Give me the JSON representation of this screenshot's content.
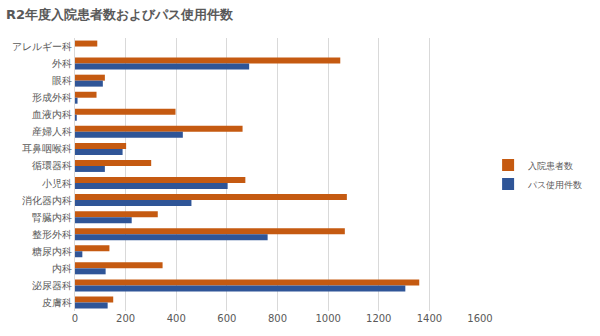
{
  "chart_data": {
    "type": "bar",
    "orientation": "horizontal",
    "title": "R2年度入院患者数およびパス使用件数",
    "categories": [
      "アレルギー科",
      "外科",
      "眼科",
      "形成外科",
      "血液内科",
      "産婦人科",
      "耳鼻咽喉科",
      "循環器科",
      "小児科",
      "消化器内科",
      "腎臓内科",
      "整形外科",
      "糖尿内科",
      "内科",
      "泌尿器科",
      "皮膚科"
    ],
    "series": [
      {
        "name": "入院患者数",
        "color": "#c55a11",
        "values": [
          88,
          1048,
          118,
          85,
          397,
          662,
          202,
          301,
          673,
          1074,
          327,
          1066,
          136,
          346,
          1360,
          151
        ]
      },
      {
        "name": "パス使用件数",
        "color": "#2f5597",
        "values": [
          0,
          688,
          110,
          10,
          7,
          426,
          188,
          118,
          603,
          460,
          224,
          761,
          29,
          121,
          1305,
          129
        ]
      }
    ],
    "xlim": [
      0,
      1600
    ],
    "xticks": [
      0,
      200,
      400,
      600,
      800,
      1000,
      1200,
      1400,
      1600
    ],
    "grid": true,
    "legend": "right"
  }
}
